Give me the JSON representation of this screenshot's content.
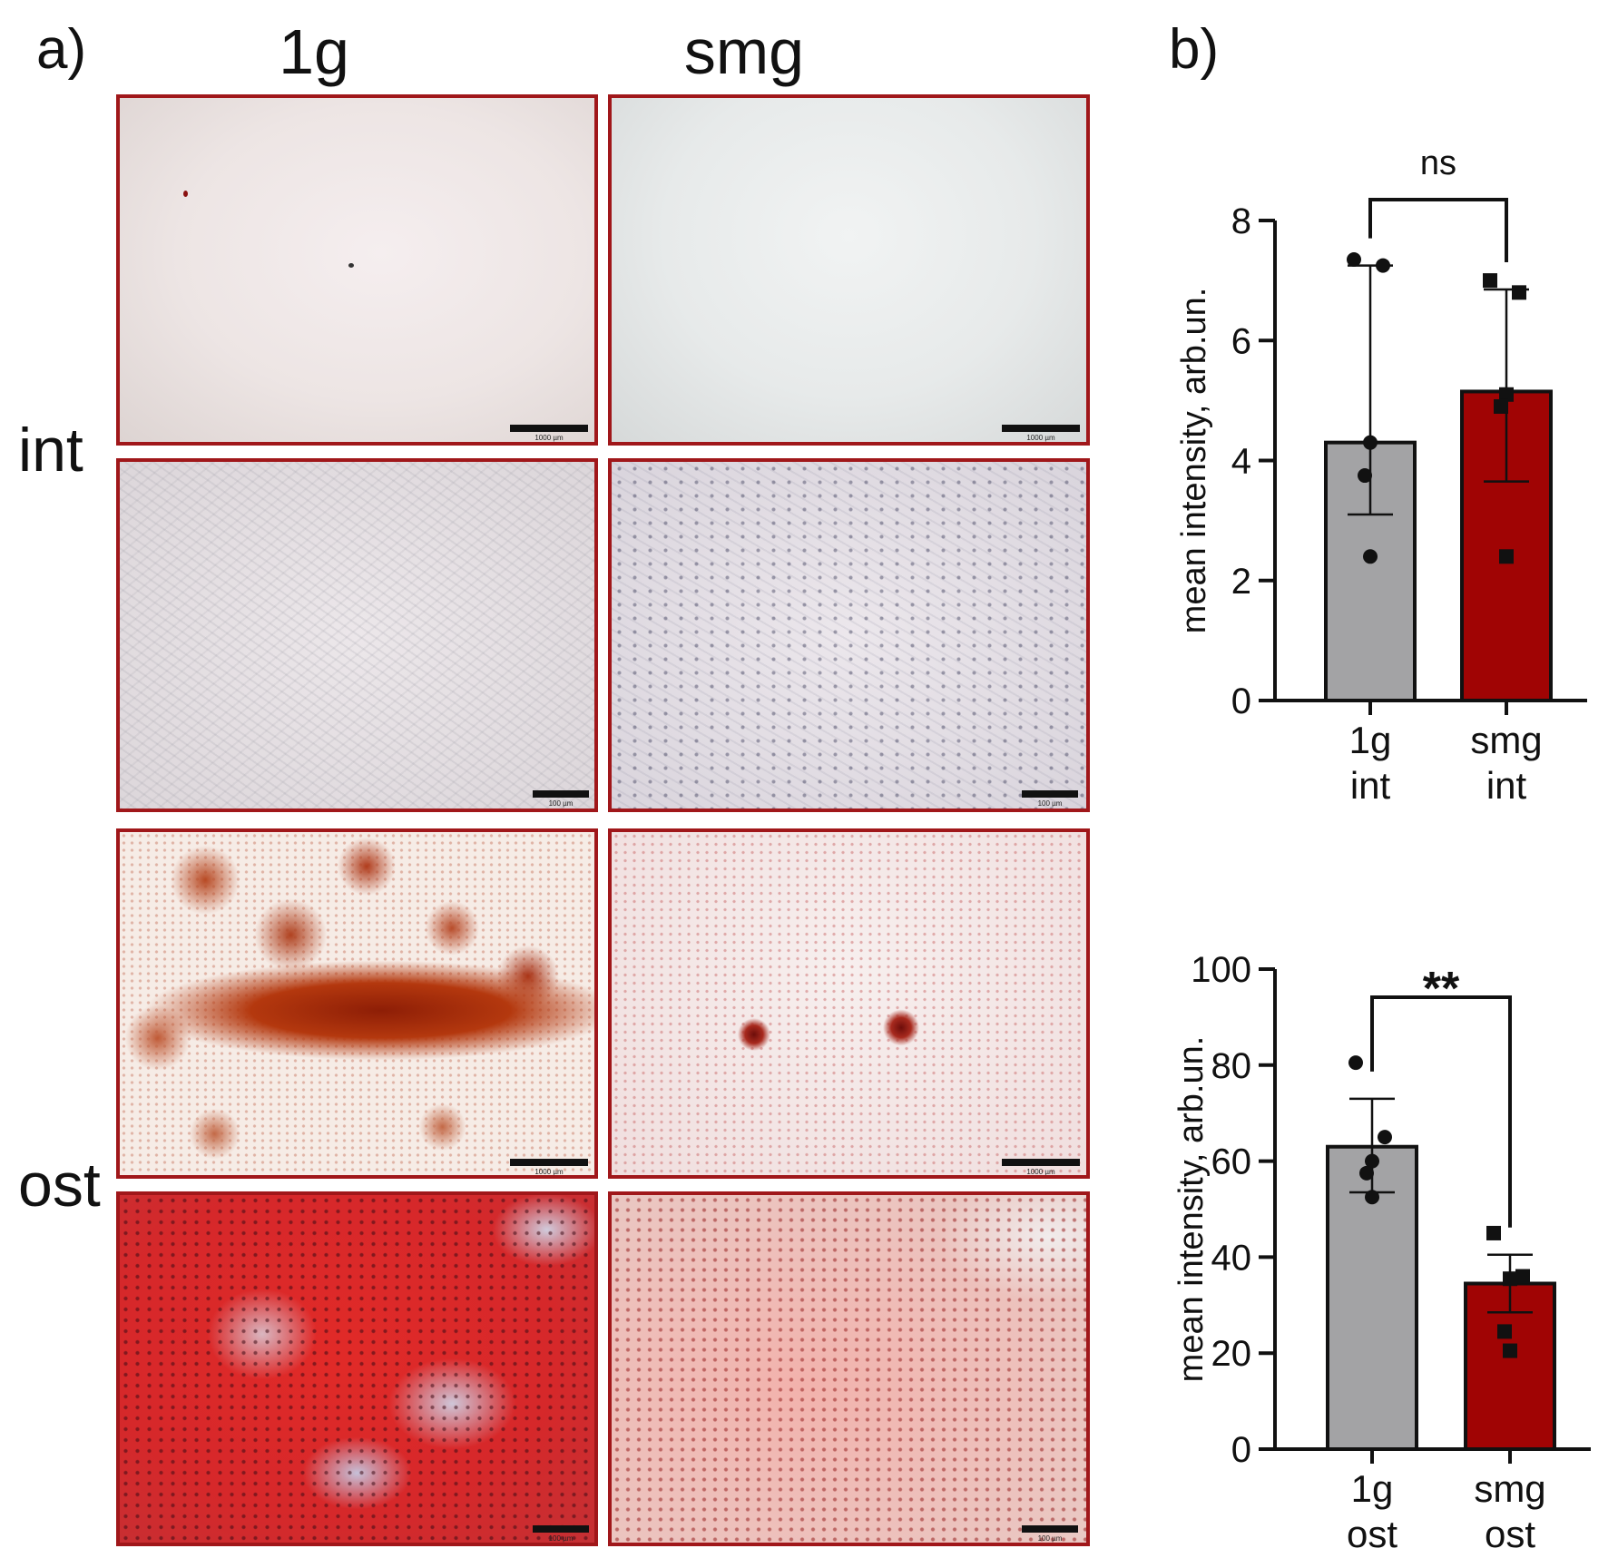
{
  "panel_a": {
    "letter": "a)",
    "col_labels": [
      "1g",
      "smg"
    ],
    "row_labels": [
      "int",
      "ost"
    ],
    "tiles": [
      {
        "name": "int-1g-low",
        "scale": "1000 µm"
      },
      {
        "name": "int-smg-low",
        "scale": "1000 µm"
      },
      {
        "name": "int-1g-high",
        "scale": "100 µm"
      },
      {
        "name": "int-smg-high",
        "scale": "100 µm"
      },
      {
        "name": "ost-1g-low",
        "scale": "1000 µm"
      },
      {
        "name": "ost-smg-low",
        "scale": "1000 µm"
      },
      {
        "name": "ost-1g-high",
        "scale": "100 µm"
      },
      {
        "name": "ost-smg-high",
        "scale": "100 µm"
      }
    ]
  },
  "panel_b": {
    "letter": "b)"
  },
  "colors": {
    "gray_bar": "#a3a3a5",
    "red_bar": "#a00404",
    "tile_border": "#a0171a",
    "axis": "#111111"
  },
  "chart_data": [
    {
      "type": "bar",
      "categories": [
        [
          "1g",
          "int"
        ],
        [
          "smg",
          "int"
        ]
      ],
      "values": [
        4.3,
        5.15
      ],
      "error": [
        [
          3.1,
          7.25
        ],
        [
          3.65,
          6.85
        ]
      ],
      "points": [
        [
          7.35,
          7.25,
          4.3,
          3.75,
          2.4
        ],
        [
          7.0,
          6.8,
          5.1,
          4.9,
          2.4
        ]
      ],
      "markers": [
        "circle",
        "square"
      ],
      "significance": "ns",
      "title": "",
      "xlabel": "",
      "ylabel": "mean intensity, arb.un.",
      "ylim": [
        0,
        8
      ],
      "yticks": [
        0,
        2,
        4,
        6,
        8
      ],
      "grid": false
    },
    {
      "type": "bar",
      "categories": [
        [
          "1g",
          "ost"
        ],
        [
          "smg",
          "ost"
        ]
      ],
      "values": [
        63,
        34.5
      ],
      "error": [
        [
          53.5,
          73
        ],
        [
          28.5,
          40.5
        ]
      ],
      "points": [
        [
          80.5,
          65,
          60,
          57.5,
          52.5
        ],
        [
          45,
          36,
          35.5,
          24.5,
          20.5
        ]
      ],
      "markers": [
        "circle",
        "square"
      ],
      "significance": "**",
      "title": "",
      "xlabel": "",
      "ylabel": "mean intensity, arb.un.",
      "ylim": [
        0,
        100
      ],
      "yticks": [
        0,
        20,
        40,
        60,
        80,
        100
      ],
      "grid": false
    }
  ]
}
